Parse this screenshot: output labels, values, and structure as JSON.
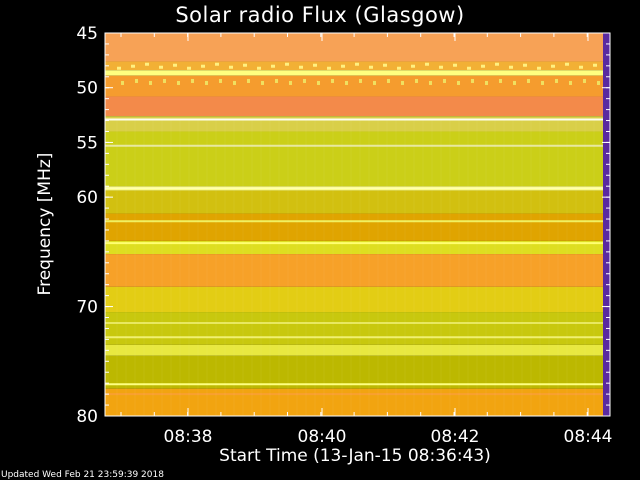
{
  "chart_data": {
    "type": "heatmap",
    "title": "Solar radio Flux (Glasgow)",
    "ylabel": "Frequency [MHz]",
    "xlabel": "Start Time (13-Jan-15 08:36:43)",
    "ylim": [
      45,
      80
    ],
    "y_inverted": true,
    "y_ticks": [
      {
        "value": 45,
        "label": "45"
      },
      {
        "value": 50,
        "label": "50"
      },
      {
        "value": 55,
        "label": "55"
      },
      {
        "value": 60,
        "label": "60"
      },
      {
        "value": 70,
        "label": "70"
      },
      {
        "value": 80,
        "label": "80"
      }
    ],
    "x_ticks": [
      "08:38",
      "08:40",
      "08:42",
      "08:44"
    ],
    "grid": false,
    "bands": [
      {
        "from": 45,
        "to": 47.6,
        "color": "#f7a256"
      },
      {
        "from": 47.6,
        "to": 48.4,
        "color": "#f2b035"
      },
      {
        "from": 48.4,
        "to": 48.9,
        "color": "#ffff80"
      },
      {
        "from": 48.9,
        "to": 50.8,
        "color": "#f59c2e"
      },
      {
        "from": 50.8,
        "to": 52.6,
        "color": "#f38a4a"
      },
      {
        "from": 52.6,
        "to": 54,
        "color": "#d9cf48"
      },
      {
        "from": 54,
        "to": 59,
        "color": "#cbcf18"
      },
      {
        "from": 59,
        "to": 59.4,
        "color": "#fbfb7a"
      },
      {
        "from": 59.4,
        "to": 61.5,
        "color": "#d2c010"
      },
      {
        "from": 61.5,
        "to": 64,
        "color": "#e0a400"
      },
      {
        "from": 64,
        "to": 65.2,
        "color": "#dede20"
      },
      {
        "from": 65.2,
        "to": 68.2,
        "color": "#f7a128"
      },
      {
        "from": 68.2,
        "to": 70.5,
        "color": "#e3cd14"
      },
      {
        "from": 70.5,
        "to": 73.5,
        "color": "#c8c80e"
      },
      {
        "from": 73.5,
        "to": 74.5,
        "color": "#e8e840"
      },
      {
        "from": 74.5,
        "to": 77.5,
        "color": "#bcb800"
      },
      {
        "from": 77.5,
        "to": 80,
        "color": "#f2a410"
      }
    ],
    "hlines": [
      {
        "value": 52.9,
        "color": "#fffff0"
      },
      {
        "value": 55.3,
        "color": "#e8e8a0"
      },
      {
        "value": 59.2,
        "color": "#ffffb0"
      },
      {
        "value": 62.2,
        "color": "#f0f060"
      },
      {
        "value": 64.2,
        "color": "#ffff70"
      },
      {
        "value": 71.5,
        "color": "#e8e860"
      },
      {
        "value": 72.8,
        "color": "#f0f070"
      },
      {
        "value": 77.1,
        "color": "#ffff80"
      },
      {
        "value": 78.0,
        "color": "#f8a030"
      }
    ]
  },
  "footer": {
    "updated": "Updated Wed Feb 21 23:59:39 2018"
  }
}
